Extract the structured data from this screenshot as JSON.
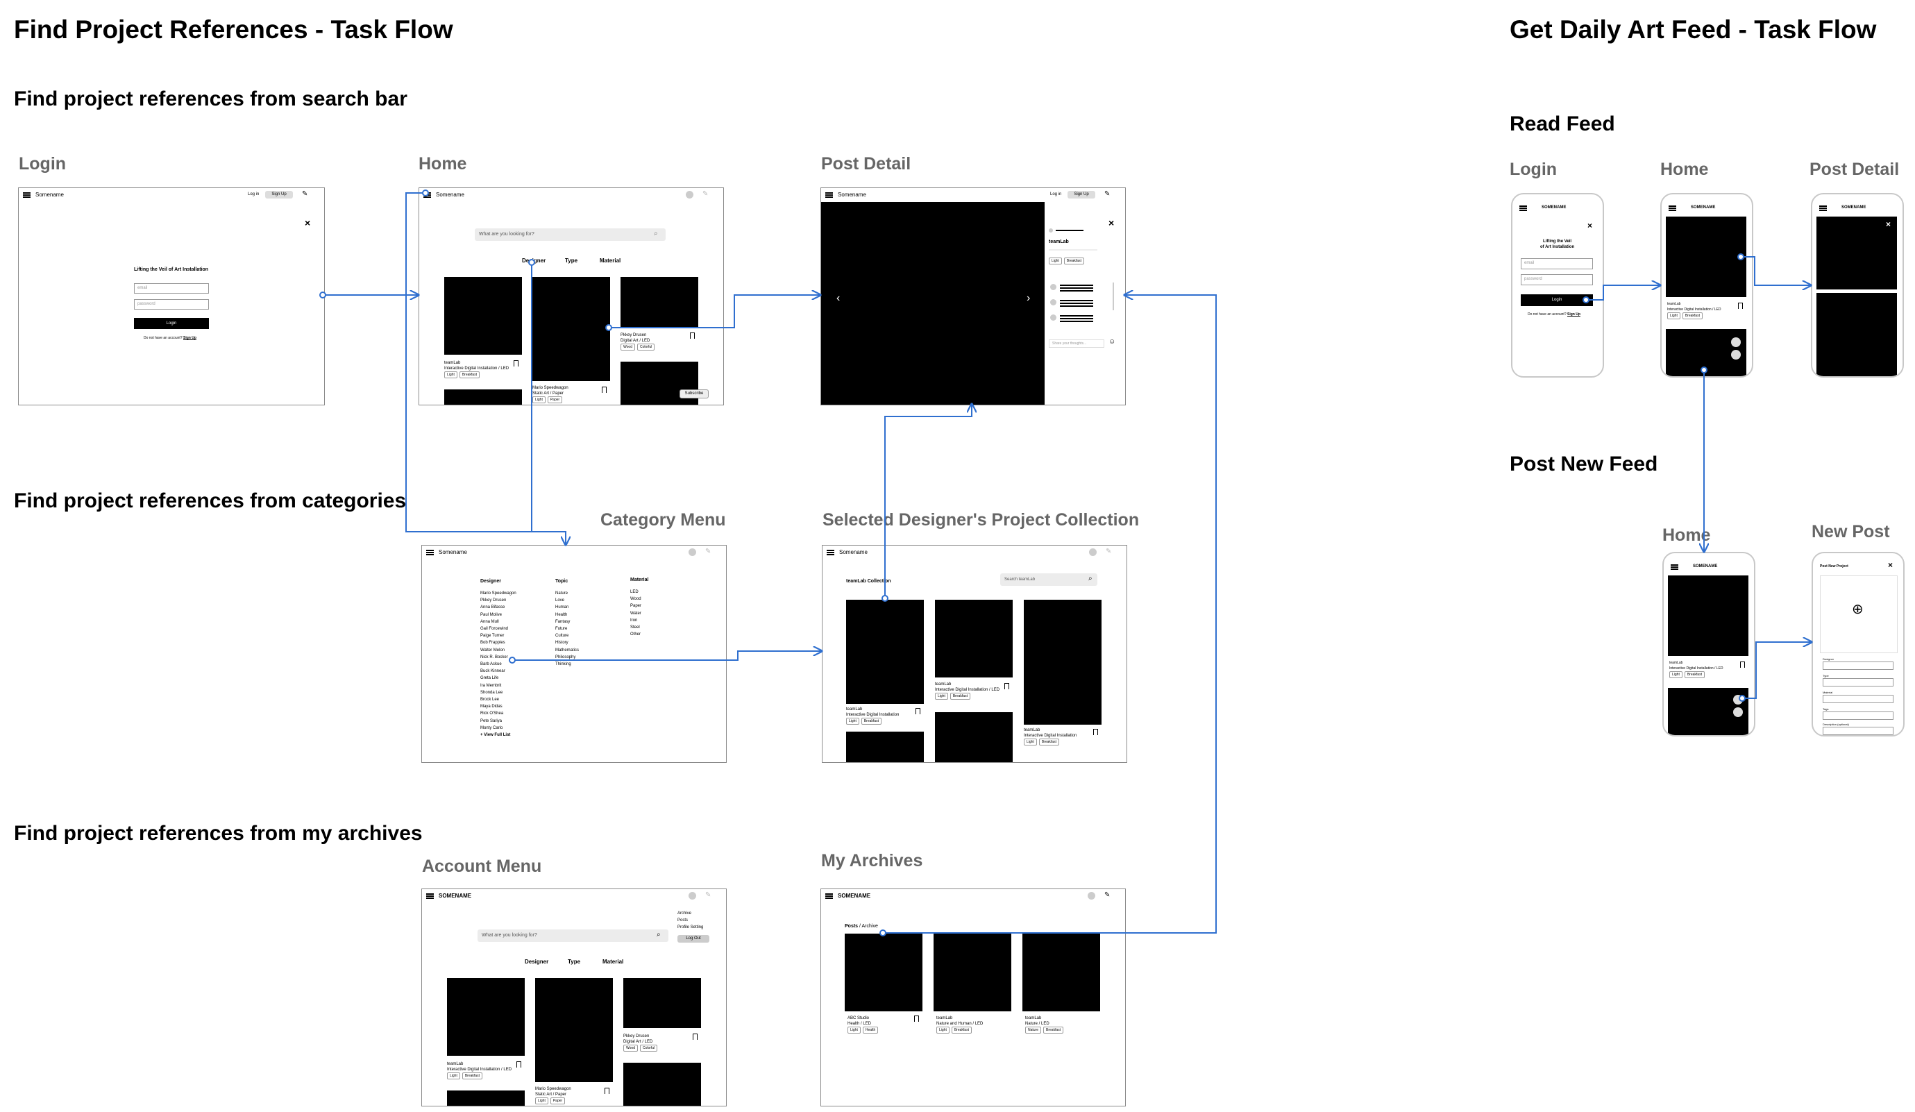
{
  "titles": {
    "left": "Find Project References - Task Flow",
    "right": "Get Daily Art Feed - Task Flow"
  },
  "sections": {
    "search_bar": "Find project references from search bar",
    "categories": "Find project references from categories",
    "archives": "Find project references from my archives",
    "read_feed": "Read Feed",
    "post_new_feed": "Post New Feed"
  },
  "screen_labels": {
    "login": "Login",
    "home": "Home",
    "post_detail": "Post Detail",
    "category_menu": "Category Menu",
    "designer_collection": "Selected Designer's Project Collection",
    "account_menu": "Account Menu",
    "my_archives": "My Archives",
    "m_login": "Login",
    "m_home": "Home",
    "m_post_detail": "Post Detail",
    "m_home2": "Home",
    "m_new_post": "New Post"
  },
  "ui": {
    "brand": "Somename",
    "brand_caps": "SOMENAME",
    "login_link": "Log in",
    "signup_button": "Sign Up",
    "login_heading": "Lifting the Veil of Art Installation",
    "login_heading_m1": "Lifting the Veil",
    "login_heading_m2": "of Art Installation",
    "email_placeholder": "email",
    "password_placeholder": "password",
    "login_button": "Login",
    "no_account": "Do not have an account?",
    "signup_link": "Sign Up",
    "search_placeholder": "What are you looking for?",
    "tab_designer": "Designer",
    "tab_type": "Type",
    "tab_material": "Material",
    "card1_title": "teamLab",
    "card1_sub": "Interactive Digital Installation / LED",
    "card2_title": "Mario Speedwagon",
    "card2_sub": "Static Art / Paper",
    "card3_title": "Pkkey Drusen",
    "card3_sub": "Digital Art / LED",
    "tag_light": "Light",
    "tag_breakfast": "Breakfast",
    "tag_wood": "Wood",
    "tag_colorful": "Colorful",
    "subscribe": "Subscribe",
    "detail_author": "teamLab",
    "comment_placeholder": "Share your thoughts...",
    "designer_col_title": "Designer",
    "topic_col_title": "Topic",
    "material_col_title": "Material",
    "view_full_list": "+ View Full List",
    "collection_title": "teamLab Collection",
    "collection_search": "Search teamLab",
    "collection_card1_sub": "Interactive Digital Installation",
    "collection_card2_sub": "Interactive Digital Installation / LED",
    "account_items": [
      "Archive",
      "Posts",
      "Profile Setting"
    ],
    "logout": "Log Out",
    "archives_tab_posts": "Posts",
    "archives_tab_archive": "Archive",
    "archive1_title": "ABC Studio",
    "archive1_sub": "Health / LED",
    "archive2_title": "teamLab",
    "archive2_sub": "Nature and Human / LED",
    "archive3_title": "teamLab",
    "archive3_sub": "Nature / LED",
    "tag_nature": "Nature",
    "tag_health": "Health",
    "tag_paper": "Paper",
    "post_new_project": "Post New Project",
    "field_labels": [
      "Designer",
      "Type",
      "Material",
      "Tags",
      "Description (optional)"
    ]
  },
  "designers": [
    "Mario Speedwagon",
    "Pkkey Drusen",
    "Anna Bifasse",
    "Paul Molive",
    "Anna Mull",
    "Gail Forcewind",
    "Paige Turner",
    "Bob Frapples",
    "Walter Melon",
    "Nick R. Bocker",
    "Barb Ackue",
    "Buck Kinnear",
    "Greta Life",
    "Ira Membrit",
    "Shonda Lee",
    "Brock Lee",
    "Maya Didas",
    "Rick O'Shea",
    "Pete Sariya",
    "Monty Carlo"
  ],
  "topics": [
    "Nature",
    "Love",
    "Human",
    "Health",
    "Fantasy",
    "Future",
    "Culture",
    "History",
    "Mathematics",
    "Philosophy",
    "Thinking"
  ],
  "materials": [
    "LED",
    "Wood",
    "Paper",
    "Water",
    "Iron",
    "Steel",
    "Other"
  ]
}
